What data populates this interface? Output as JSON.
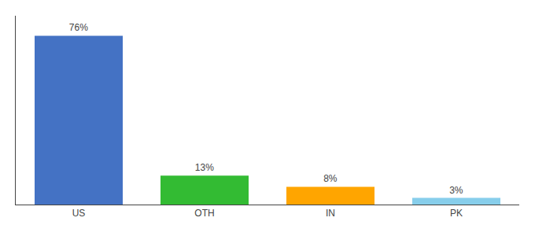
{
  "chart_data": {
    "type": "bar",
    "categories": [
      "US",
      "OTH",
      "IN",
      "PK"
    ],
    "values": [
      76,
      13,
      8,
      3
    ],
    "value_labels": [
      "76%",
      "13%",
      "8%",
      "3%"
    ],
    "data_labels": true,
    "colors": [
      "#4472C4",
      "#33BB33",
      "#FFA500",
      "#87CEEB"
    ],
    "ylim": [
      0,
      85
    ],
    "tick_labels": "x",
    "grid": false
  }
}
